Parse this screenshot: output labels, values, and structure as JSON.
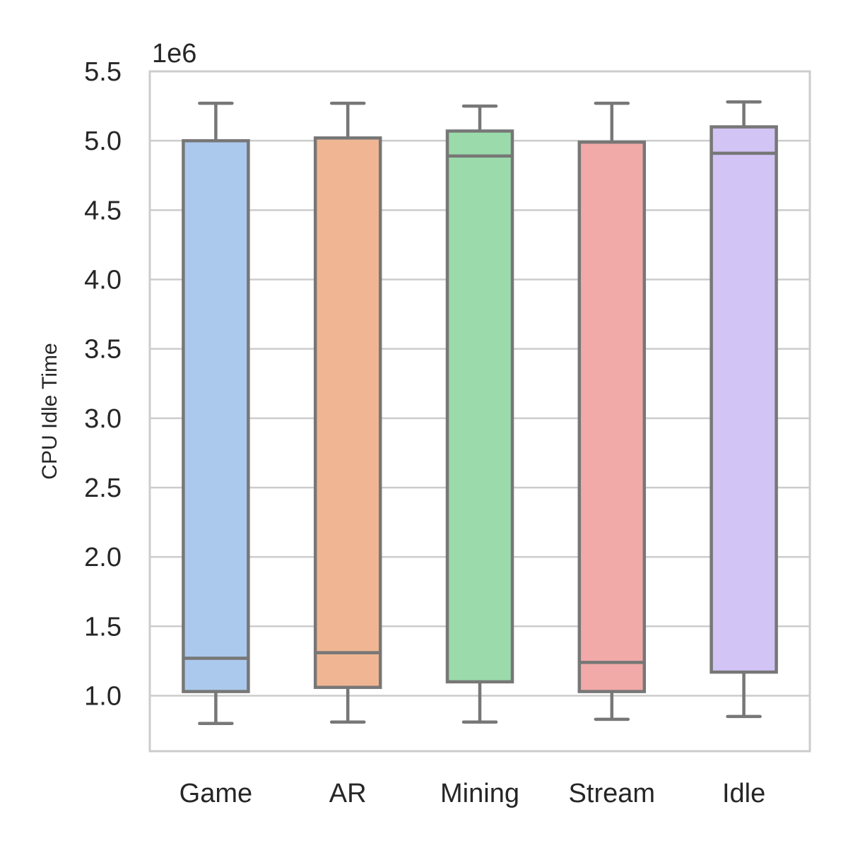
{
  "chart_data": {
    "type": "box",
    "ylabel": "CPU Idle Time",
    "offset_label": "1e6",
    "ylim": [
      0.6,
      5.5
    ],
    "yticks": [
      1.0,
      1.5,
      2.0,
      2.5,
      3.0,
      3.5,
      4.0,
      4.5,
      5.0,
      5.5
    ],
    "ytick_labels": [
      "1.0",
      "1.5",
      "2.0",
      "2.5",
      "3.0",
      "3.5",
      "4.0",
      "4.5",
      "5.0",
      "5.5"
    ],
    "grid": true,
    "categories": [
      "Game",
      "AR",
      "Mining",
      "Stream",
      "Idle"
    ],
    "colors": [
      "#abc9ec",
      "#f0b693",
      "#9bdbab",
      "#f1aaa8",
      "#d2c4f5"
    ],
    "edge_color": "#777777",
    "boxes": [
      {
        "whisker_low": 0.8,
        "q1": 1.03,
        "median": 1.27,
        "q3": 5.0,
        "whisker_high": 5.27
      },
      {
        "whisker_low": 0.81,
        "q1": 1.06,
        "median": 1.31,
        "q3": 5.02,
        "whisker_high": 5.27
      },
      {
        "whisker_low": 0.81,
        "q1": 1.1,
        "median": 4.89,
        "q3": 5.07,
        "whisker_high": 5.25
      },
      {
        "whisker_low": 0.83,
        "q1": 1.03,
        "median": 1.24,
        "q3": 4.99,
        "whisker_high": 5.27
      },
      {
        "whisker_low": 0.85,
        "q1": 1.17,
        "median": 4.91,
        "q3": 5.1,
        "whisker_high": 5.28
      }
    ]
  }
}
